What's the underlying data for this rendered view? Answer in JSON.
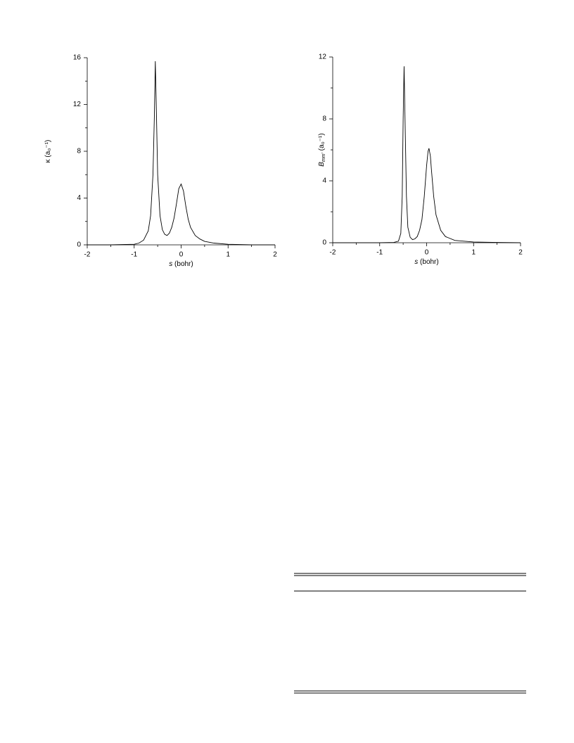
{
  "chart_data": [
    {
      "type": "line",
      "xlabel": {
        "symbol": "s",
        "units": "(bohr)"
      },
      "ylabel": {
        "symbol": "κ",
        "units": "(a₀⁻¹)"
      },
      "x": [
        -2,
        -1.5,
        -1,
        -0.9,
        -0.8,
        -0.7,
        -0.65,
        -0.6,
        -0.57,
        -0.55,
        -0.53,
        -0.5,
        -0.45,
        -0.4,
        -0.35,
        -0.3,
        -0.25,
        -0.2,
        -0.15,
        -0.1,
        -0.05,
        0,
        0.05,
        0.1,
        0.15,
        0.2,
        0.3,
        0.4,
        0.5,
        0.7,
        1,
        1.5,
        2
      ],
      "series": [
        {
          "color": "#000000",
          "values": [
            0,
            0,
            0.05,
            0.15,
            0.4,
            1.2,
            2.5,
            6,
            11,
            15.7,
            12,
            6,
            2.5,
            1.3,
            0.9,
            0.8,
            1.0,
            1.5,
            2.3,
            3.5,
            4.8,
            5.2,
            4.6,
            3.3,
            2.2,
            1.5,
            0.8,
            0.5,
            0.3,
            0.15,
            0.05,
            0,
            0
          ]
        }
      ],
      "xlim": [
        -2,
        2
      ],
      "xticks": [
        -2,
        -1,
        0,
        1,
        2
      ],
      "xminorticks": [
        -1.5,
        -0.5,
        0.5,
        1.5
      ],
      "ylim": [
        0,
        16
      ],
      "yticks": [
        0,
        4,
        8,
        12,
        16
      ],
      "yminorticks": [
        2,
        6,
        10,
        14
      ]
    },
    {
      "type": "line",
      "xlabel": {
        "symbol": "s",
        "units": "(bohr)"
      },
      "ylabel": {
        "symbol": "B",
        "subscript": "mm'",
        "units": "(a₀⁻¹)"
      },
      "x": [
        -2,
        -1,
        -0.7,
        -0.6,
        -0.55,
        -0.52,
        -0.5,
        -0.48,
        -0.46,
        -0.43,
        -0.4,
        -0.35,
        -0.3,
        -0.25,
        -0.2,
        -0.15,
        -0.1,
        -0.05,
        0,
        0.03,
        0.05,
        0.08,
        0.1,
        0.15,
        0.2,
        0.3,
        0.4,
        0.6,
        1,
        1.5,
        2
      ],
      "series": [
        {
          "color": "#000000",
          "values": [
            0,
            0,
            0.02,
            0.1,
            0.6,
            3,
            8,
            11.4,
            8,
            3,
            1,
            0.35,
            0.2,
            0.25,
            0.4,
            0.8,
            1.5,
            3,
            5,
            5.9,
            6.1,
            5.6,
            4.8,
            3,
            1.8,
            0.8,
            0.4,
            0.15,
            0.05,
            0.02,
            0
          ]
        }
      ],
      "xlim": [
        -2,
        2
      ],
      "xticks": [
        -2,
        -1,
        0,
        1,
        2
      ],
      "xminorticks": [
        -1.5,
        -0.5,
        0.5,
        1.5
      ],
      "ylim": [
        0,
        12
      ],
      "yticks": [
        0,
        4,
        8,
        12
      ],
      "yminorticks": [
        2,
        6,
        10
      ]
    }
  ]
}
